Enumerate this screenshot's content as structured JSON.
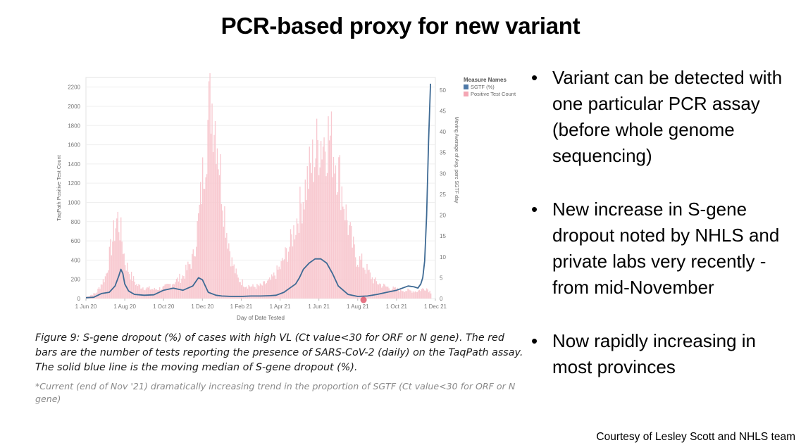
{
  "slide": {
    "title": "PCR-based proxy for new variant",
    "bullets": [
      "Variant can be detected with one particular PCR assay (before whole genome sequencing)",
      "New increase in S-gene dropout noted by NHLS and private labs very recently - from mid-November",
      "Now rapidly increasing in most provinces"
    ],
    "caption": "Figure 9: S-gene dropout (%) of cases with high VL (Ct value<30 for ORF or N gene). The red bars are the number of tests reporting the presence of SARS-CoV-2 (daily) on the TaqPath assay. The solid blue line is the moving median of S-gene dropout (%).",
    "footnote": "*Current (end of Nov '21) dramatically increasing trend in the proportion of SGTF (Ct value<30 for ORF or N gene)",
    "credit": "Courtesy of Lesley Scott and NHLS team",
    "bullet_glyph": "•"
  },
  "chart_data": {
    "type": "bar",
    "xlabel": "Day of Date Tested",
    "ylabel": "TaqPath Positive Test Count",
    "y2label": "Moving Average of Avg. perc SGTF day",
    "x_ticks": [
      "1 Jun 20",
      "1 Aug 20",
      "1 Oct 20",
      "1 Dec 20",
      "1 Feb 21",
      "1 Apr 21",
      "1 Jun 21",
      "1 Aug 21",
      "1 Oct 21",
      "1 Dec 21"
    ],
    "ylim": [
      0,
      2300
    ],
    "y_ticks": [
      "0",
      "200",
      "400",
      "600",
      "800",
      "1000",
      "1200",
      "1400",
      "1600",
      "1800",
      "2000",
      "2200"
    ],
    "y2lim": [
      0,
      53
    ],
    "y2_ticks": [
      "0",
      "5",
      "10",
      "15",
      "20",
      "25",
      "30",
      "35",
      "40",
      "45",
      "50"
    ],
    "legend": {
      "title": "Measure Names",
      "items": [
        {
          "label": "SGTF (%)",
          "color": "#4e79a7"
        },
        {
          "label": "Positive Test Count",
          "color": "#f4a6b4"
        }
      ],
      "position": "top-right"
    },
    "series": [
      {
        "name": "Positive Test Count",
        "axis": "left",
        "color": "#f8c9d0",
        "x_month": [
          0,
          0.5,
          1,
          1.3,
          1.6,
          1.8,
          2.0,
          2.3,
          2.6,
          3.0,
          3.5,
          4.0,
          4.5,
          5.0,
          5.5,
          5.8,
          6.1,
          6.4,
          6.7,
          6.9,
          7.2,
          7.5,
          7.8,
          8.2,
          8.6,
          9.0,
          9.5,
          10.0,
          10.5,
          11.0,
          11.5,
          12.0,
          12.5,
          12.8,
          13.1,
          13.4,
          13.7,
          13.9,
          14.2,
          14.5,
          14.8,
          15.2,
          15.6,
          16.0,
          16.5,
          17.0,
          17.5,
          17.8
        ],
        "values": [
          20,
          60,
          250,
          600,
          900,
          700,
          400,
          250,
          150,
          120,
          100,
          120,
          180,
          250,
          450,
          900,
          1600,
          2250,
          1900,
          1400,
          800,
          400,
          220,
          150,
          130,
          140,
          200,
          350,
          600,
          1000,
          1400,
          1750,
          1800,
          1600,
          1300,
          900,
          600,
          450,
          400,
          300,
          200,
          150,
          120,
          100,
          90,
          80,
          120,
          60
        ],
        "noise": 0.3
      },
      {
        "name": "SGTF (%)",
        "axis": "right",
        "color": "#3e6a94",
        "x_month": [
          0,
          0.4,
          0.8,
          1.2,
          1.5,
          1.7,
          1.8,
          1.9,
          2.0,
          2.2,
          2.5,
          3.0,
          3.5,
          4.0,
          4.5,
          5.0,
          5.5,
          5.8,
          6.0,
          6.3,
          6.7,
          7.0,
          7.5,
          8.0,
          8.5,
          9.0,
          9.5,
          9.8,
          10.2,
          10.5,
          10.8,
          11.0,
          11.2,
          11.5,
          11.8,
          12.1,
          12.4,
          12.7,
          13.0,
          13.5,
          14.0,
          14.5,
          15.0,
          15.5,
          16.0,
          16.3,
          16.6,
          16.9,
          17.1,
          17.25,
          17.35,
          17.45,
          17.55,
          17.65,
          17.75
        ],
        "values": [
          0.2,
          0.3,
          1.2,
          1.5,
          3.0,
          5.5,
          7.0,
          6.0,
          3.5,
          1.8,
          1.0,
          0.8,
          0.9,
          2.0,
          2.5,
          2.0,
          3.0,
          5.0,
          4.5,
          1.5,
          0.8,
          0.6,
          0.5,
          0.5,
          0.6,
          0.6,
          0.7,
          0.8,
          1.5,
          2.5,
          3.5,
          5.0,
          7.0,
          8.5,
          9.5,
          9.5,
          8.5,
          6.0,
          3.0,
          1.0,
          0.5,
          0.6,
          1.0,
          1.5,
          2.0,
          2.5,
          3.0,
          2.8,
          2.5,
          3.5,
          5.0,
          9.0,
          20.0,
          38.0,
          51.5
        ]
      }
    ],
    "x_month_range": [
      0,
      18
    ],
    "marker": {
      "x_month": 14.3,
      "color": "#e15b6d"
    }
  }
}
